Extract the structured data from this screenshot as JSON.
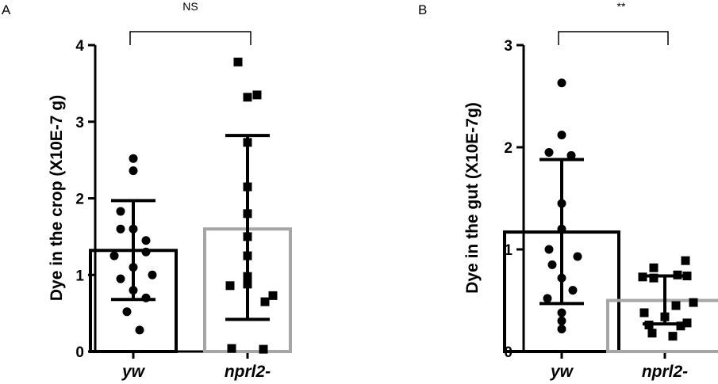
{
  "chart_data": [
    {
      "panel": "A",
      "type": "bar",
      "ylabel": "Dye in the crop (X10E-7 g)",
      "ylim": [
        0,
        4
      ],
      "yticks": [
        0,
        1,
        2,
        3,
        4
      ],
      "categories": [
        "yw",
        "nprl2-"
      ],
      "significance": "NS",
      "bars": [
        {
          "category": "yw",
          "mean": 1.32,
          "err_low": 0.68,
          "err_high": 1.97,
          "color": "#000000",
          "marker": "circle",
          "points": [
            2.52,
            2.36,
            1.83,
            1.6,
            1.6,
            1.45,
            1.3,
            1.25,
            1.1,
            1.0,
            0.95,
            0.8,
            0.7,
            0.52,
            0.28
          ]
        },
        {
          "category": "nprl2-",
          "mean": 1.6,
          "err_low": 0.42,
          "err_high": 2.82,
          "color": "#a6a6a6",
          "marker": "square",
          "points": [
            3.78,
            3.35,
            3.32,
            2.73,
            2.15,
            1.8,
            1.5,
            1.25,
            0.98,
            0.88,
            0.86,
            0.73,
            0.65,
            0.04,
            0.03
          ]
        }
      ]
    },
    {
      "panel": "B",
      "type": "bar",
      "ylabel": "Dye in the gut (X10E-7g)",
      "ylim": [
        0,
        3
      ],
      "yticks": [
        0,
        1,
        2,
        3
      ],
      "categories": [
        "yw",
        "nprl2-"
      ],
      "significance": "**",
      "bars": [
        {
          "category": "yw",
          "mean": 1.17,
          "err_low": 0.47,
          "err_high": 1.88,
          "color": "#000000",
          "marker": "circle",
          "points": [
            2.63,
            2.12,
            1.95,
            1.92,
            1.45,
            1.2,
            1.0,
            0.93,
            0.85,
            0.72,
            0.6,
            0.52,
            0.38,
            0.3,
            0.22
          ]
        },
        {
          "category": "nprl2-",
          "mean": 0.5,
          "err_low": 0.27,
          "err_high": 0.74,
          "color": "#a6a6a6",
          "marker": "square",
          "points": [
            0.89,
            0.82,
            0.75,
            0.74,
            0.73,
            0.72,
            0.48,
            0.45,
            0.38,
            0.34,
            0.28,
            0.26,
            0.25,
            0.18,
            0.15
          ]
        }
      ]
    }
  ]
}
